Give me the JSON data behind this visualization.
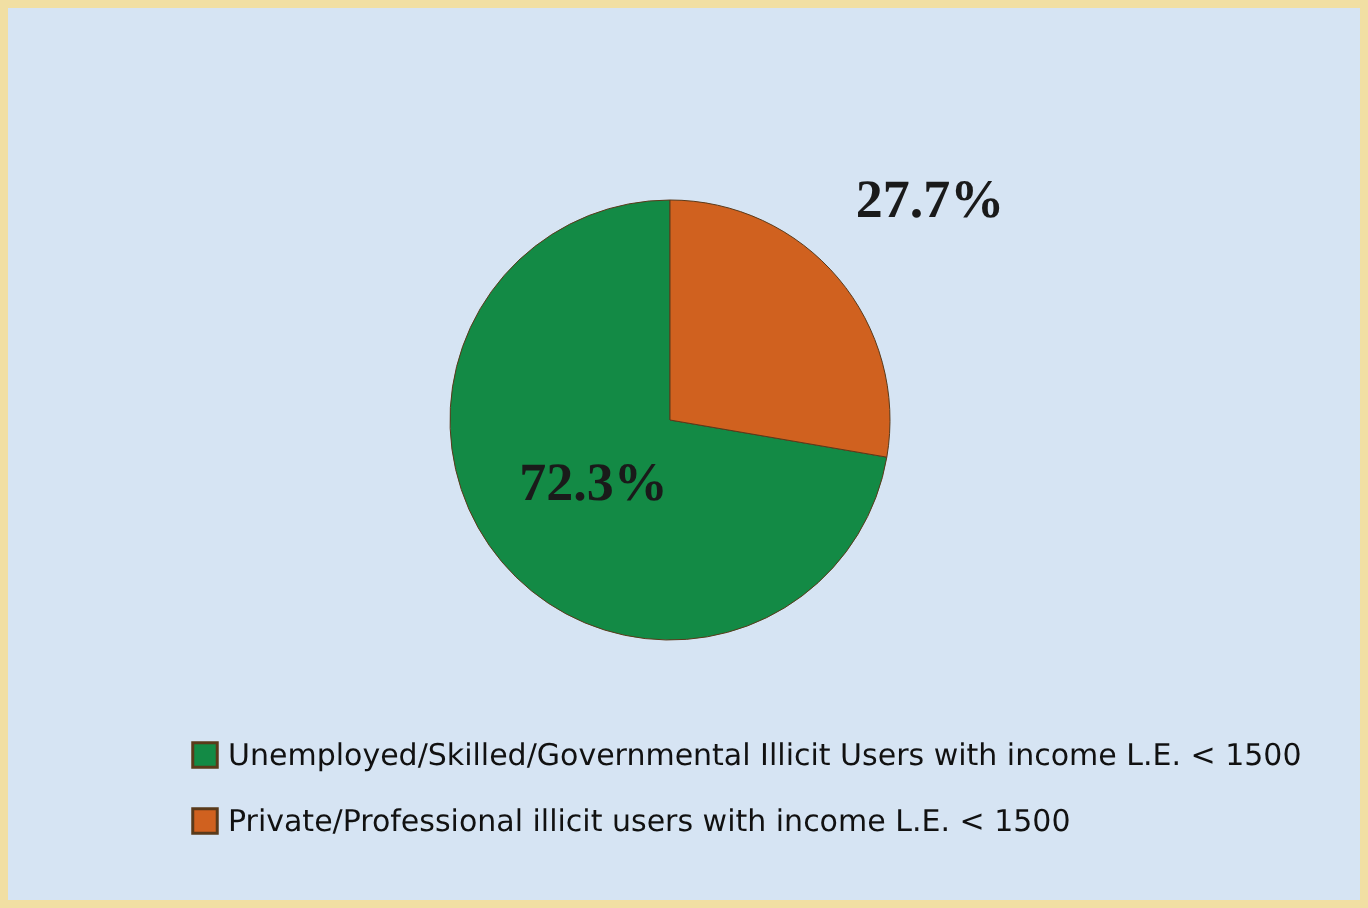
{
  "chart_data": {
    "type": "pie",
    "categories": [
      "Unemployed/Skilled/Governmental Illicit Users with income L.E. < 1500",
      "Private/Professional illicit users with income L.E. < 1500"
    ],
    "values": [
      72.3,
      27.7
    ],
    "colors": [
      "#138a45",
      "#d0611f"
    ],
    "value_labels": [
      "72.3%",
      "27.7%"
    ],
    "legend": "bottom"
  }
}
